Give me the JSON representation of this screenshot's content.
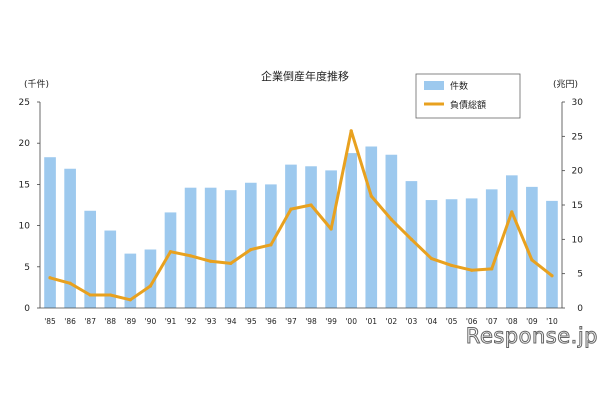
{
  "chart_data": {
    "type": "bar",
    "title": "企業倒産年度推移",
    "left_axis_unit": "(千件)",
    "right_axis_unit": "(兆円)",
    "categories": [
      "'85",
      "'86",
      "'87",
      "'88",
      "'89",
      "'90",
      "'91",
      "'92",
      "'93",
      "'94",
      "'95",
      "'96",
      "'97",
      "'98",
      "'99",
      "'00",
      "'01",
      "'02",
      "'03",
      "'04",
      "'05",
      "'06",
      "'07",
      "'08",
      "'09",
      "'10"
    ],
    "ylim_left": [
      0,
      25
    ],
    "ylim_right": [
      0,
      30
    ],
    "yticks_left": [
      "0",
      "5",
      "10",
      "15",
      "20",
      "25"
    ],
    "yticks_right": [
      "0",
      "5",
      "10",
      "15",
      "20",
      "25",
      "30"
    ],
    "legend_position": "top-right",
    "grid": false,
    "series": [
      {
        "name": "件数",
        "type": "bar",
        "axis": "left",
        "color": "#9dc9ee",
        "values": [
          18.3,
          16.9,
          11.8,
          9.4,
          6.6,
          7.1,
          11.6,
          14.6,
          14.6,
          14.3,
          15.2,
          15.0,
          17.4,
          17.2,
          16.7,
          18.8,
          19.6,
          18.6,
          15.4,
          13.1,
          13.2,
          13.3,
          14.4,
          16.1,
          14.7,
          13.0
        ]
      },
      {
        "name": "負債総額",
        "type": "line",
        "axis": "right",
        "color": "#e8a11f",
        "values": [
          4.4,
          3.6,
          1.9,
          1.9,
          1.2,
          3.2,
          8.2,
          7.6,
          6.8,
          6.5,
          8.5,
          9.2,
          14.4,
          15.0,
          11.5,
          25.8,
          16.3,
          12.9,
          10.0,
          7.2,
          6.2,
          5.5,
          5.7,
          14.0,
          7.0,
          4.7
        ]
      }
    ]
  },
  "watermark": "Response.jp"
}
